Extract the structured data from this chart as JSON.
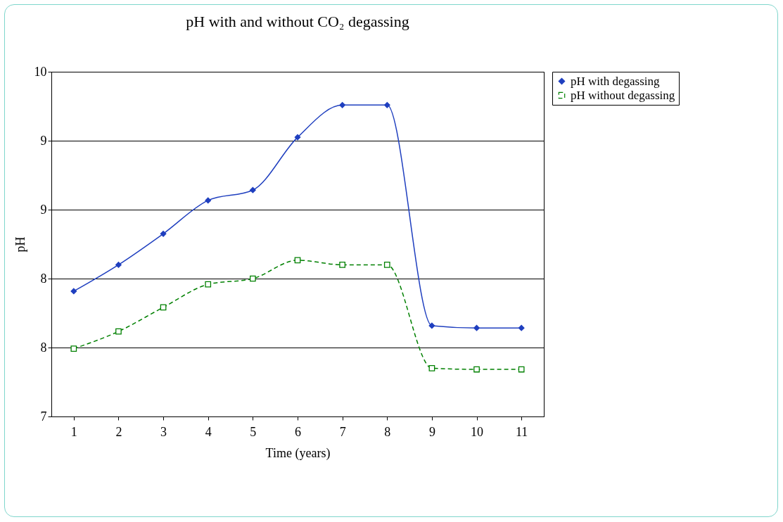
{
  "chart_data": {
    "type": "line",
    "title": "pH with and without CO₂ degassing",
    "xlabel": "Time (years)",
    "ylabel": "pH",
    "categories": [
      "1",
      "2",
      "3",
      "4",
      "5",
      "6",
      "7",
      "8",
      "9",
      "10",
      "11"
    ],
    "series": [
      {
        "name": "pH with degassing",
        "color": "#1f3fbf",
        "marker": "diamond",
        "line_style": "solid",
        "values": [
          8.09,
          8.32,
          8.59,
          8.88,
          8.97,
          9.43,
          9.71,
          9.71,
          7.79,
          7.77,
          7.77
        ]
      },
      {
        "name": "pH without degassing",
        "color": "#008000",
        "marker": "square",
        "line_style": "dashed",
        "values": [
          7.59,
          7.74,
          7.95,
          8.15,
          8.2,
          8.36,
          8.32,
          8.32,
          7.42,
          7.41,
          7.41
        ]
      }
    ],
    "ylim": [
      7,
      10
    ],
    "yticks": [
      7,
      {
        "value": 7.6,
        "label": "8"
      },
      {
        "value": 8.2,
        "label": "8"
      },
      {
        "value": 8.8,
        "label": "9"
      },
      {
        "value": 9.4,
        "label": "9"
      },
      10
    ],
    "grid": "y",
    "legend": "right"
  }
}
